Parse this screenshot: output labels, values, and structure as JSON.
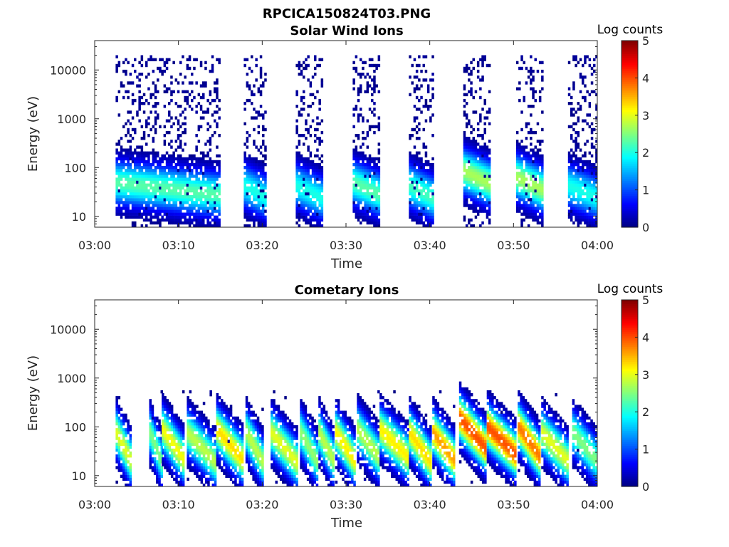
{
  "figure_title": "RPCICA150824T03.PNG",
  "chart_data": [
    {
      "type": "heatmap",
      "title": "Solar Wind Ions",
      "xlabel": "Time",
      "ylabel": "Energy (eV)",
      "x_tick_labels": [
        "03:00",
        "03:10",
        "03:20",
        "03:30",
        "03:40",
        "03:50",
        "04:00"
      ],
      "x_ticks_minutes": [
        0,
        10,
        20,
        30,
        40,
        50,
        60
      ],
      "xlim_minutes": [
        0,
        60
      ],
      "y_scale": "log",
      "y_tick_labels": [
        "10",
        "100",
        "1000",
        "10000"
      ],
      "y_ticks": [
        10,
        100,
        1000,
        10000
      ],
      "ylim": [
        6,
        40000
      ],
      "colorbar": {
        "label": "Log counts",
        "range": [
          0,
          5
        ],
        "tick_labels": [
          "0",
          "1",
          "2",
          "3",
          "4",
          "5"
        ],
        "colormap": "jet"
      },
      "bursts": [
        {
          "start_min": 2.5,
          "end_min": 14.8,
          "peak_energy_eV": 35,
          "peak_log_counts": 2.3,
          "max_energy_eV": 20000
        },
        {
          "start_min": 17.8,
          "end_min": 20.5,
          "peak_energy_eV": 30,
          "peak_log_counts": 2.0,
          "max_energy_eV": 20000
        },
        {
          "start_min": 24.0,
          "end_min": 27.0,
          "peak_energy_eV": 30,
          "peak_log_counts": 2.0,
          "max_energy_eV": 20000
        },
        {
          "start_min": 30.8,
          "end_min": 34.0,
          "peak_energy_eV": 35,
          "peak_log_counts": 2.3,
          "max_energy_eV": 20000
        },
        {
          "start_min": 37.5,
          "end_min": 40.3,
          "peak_energy_eV": 30,
          "peak_log_counts": 2.2,
          "max_energy_eV": 20000
        },
        {
          "start_min": 44.0,
          "end_min": 47.0,
          "peak_energy_eV": 60,
          "peak_log_counts": 2.7,
          "max_energy_eV": 20000
        },
        {
          "start_min": 50.3,
          "end_min": 53.3,
          "peak_energy_eV": 45,
          "peak_log_counts": 2.7,
          "max_energy_eV": 20000
        },
        {
          "start_min": 56.5,
          "end_min": 60.0,
          "peak_energy_eV": 30,
          "peak_log_counts": 2.0,
          "max_energy_eV": 20000
        }
      ]
    },
    {
      "type": "heatmap",
      "title": "Cometary Ions",
      "xlabel": "Time",
      "ylabel": "Energy (eV)",
      "x_tick_labels": [
        "03:00",
        "03:10",
        "03:20",
        "03:30",
        "03:40",
        "03:50",
        "04:00"
      ],
      "x_ticks_minutes": [
        0,
        10,
        20,
        30,
        40,
        50,
        60
      ],
      "xlim_minutes": [
        0,
        60
      ],
      "y_scale": "log",
      "y_tick_labels": [
        "10",
        "100",
        "1000",
        "10000"
      ],
      "y_ticks": [
        10,
        100,
        1000,
        10000
      ],
      "ylim": [
        6,
        40000
      ],
      "colorbar": {
        "label": "Log counts",
        "range": [
          0,
          5
        ],
        "tick_labels": [
          "0",
          "1",
          "2",
          "3",
          "4",
          "5"
        ],
        "colormap": "jet"
      },
      "bursts": [
        {
          "start_min": 2.5,
          "end_min": 4.3,
          "peak_energy_eV": 30,
          "peak_log_counts": 3.0
        },
        {
          "start_min": 6.5,
          "end_min": 7.9,
          "peak_energy_eV": 30,
          "peak_log_counts": 2.5
        },
        {
          "start_min": 8.0,
          "end_min": 10.5,
          "peak_energy_eV": 35,
          "peak_log_counts": 3.1
        },
        {
          "start_min": 11.0,
          "end_min": 14.3,
          "peak_energy_eV": 30,
          "peak_log_counts": 2.8
        },
        {
          "start_min": 14.5,
          "end_min": 17.5,
          "peak_energy_eV": 35,
          "peak_log_counts": 3.3
        },
        {
          "start_min": 18.0,
          "end_min": 20.0,
          "peak_energy_eV": 30,
          "peak_log_counts": 2.8
        },
        {
          "start_min": 21.0,
          "end_min": 24.0,
          "peak_energy_eV": 30,
          "peak_log_counts": 3.0
        },
        {
          "start_min": 24.5,
          "end_min": 26.5,
          "peak_energy_eV": 30,
          "peak_log_counts": 2.6
        },
        {
          "start_min": 26.7,
          "end_min": 28.5,
          "peak_energy_eV": 30,
          "peak_log_counts": 2.8
        },
        {
          "start_min": 28.7,
          "end_min": 31.0,
          "peak_energy_eV": 30,
          "peak_log_counts": 3.2
        },
        {
          "start_min": 31.3,
          "end_min": 34.0,
          "peak_energy_eV": 35,
          "peak_log_counts": 2.8
        },
        {
          "start_min": 34.0,
          "end_min": 37.5,
          "peak_energy_eV": 35,
          "peak_log_counts": 3.2
        },
        {
          "start_min": 37.5,
          "end_min": 40.0,
          "peak_energy_eV": 30,
          "peak_log_counts": 3.3
        },
        {
          "start_min": 40.3,
          "end_min": 43.0,
          "peak_energy_eV": 30,
          "peak_log_counts": 3.6
        },
        {
          "start_min": 43.5,
          "end_min": 46.5,
          "peak_energy_eV": 60,
          "peak_log_counts": 4.0
        },
        {
          "start_min": 46.8,
          "end_min": 50.3,
          "peak_energy_eV": 40,
          "peak_log_counts": 4.0
        },
        {
          "start_min": 50.5,
          "end_min": 53.0,
          "peak_energy_eV": 40,
          "peak_log_counts": 3.8
        },
        {
          "start_min": 53.3,
          "end_min": 56.5,
          "peak_energy_eV": 30,
          "peak_log_counts": 3.0
        },
        {
          "start_min": 57.0,
          "end_min": 60.0,
          "peak_energy_eV": 30,
          "peak_log_counts": 2.5
        }
      ]
    }
  ]
}
